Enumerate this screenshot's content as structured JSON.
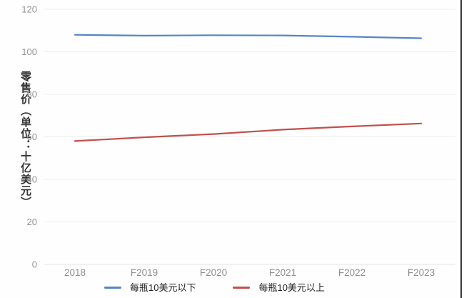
{
  "chart_data": {
    "type": "line",
    "categories": [
      "2018",
      "F2019",
      "F2020",
      "F2021",
      "F2022",
      "F2023"
    ],
    "series": [
      {
        "name": "每瓶10美元以下",
        "color": "#5585c5",
        "values": [
          108,
          107.6,
          107.8,
          107.7,
          107.1,
          106.4
        ]
      },
      {
        "name": "每瓶10美元以上",
        "color": "#c0504d",
        "values": [
          58,
          59.8,
          61.3,
          63.4,
          64.9,
          66.3
        ]
      }
    ],
    "title": "",
    "xlabel": "",
    "ylabel": "零售价（单位：十亿美元）",
    "yticks": [
      0,
      20,
      40,
      60,
      80,
      100,
      120
    ],
    "ylim": [
      0,
      120
    ],
    "grid": true,
    "legend_position": "bottom",
    "background_color": "#fefefe",
    "gridline_color": "#ededed",
    "tick_label_color": "#8f8f8f"
  }
}
